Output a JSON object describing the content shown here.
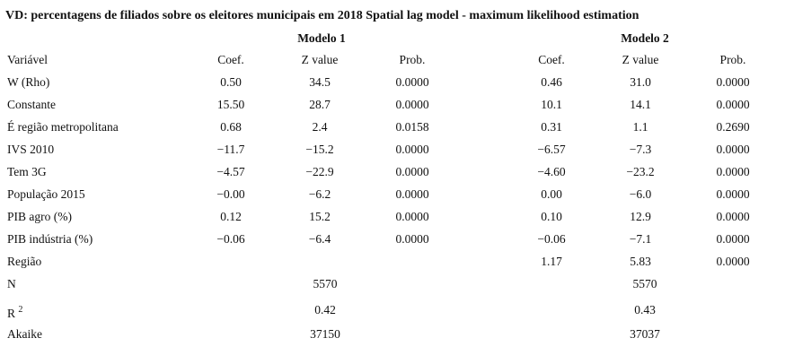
{
  "title": "VD: percentagens de filiados sobre os eleitores municipais em 2018 Spatial lag model - maximum likelihood estimation",
  "models": [
    "Modelo 1",
    "Modelo 2"
  ],
  "columns": [
    "Variável",
    "Coef.",
    "Z value",
    "Prob."
  ],
  "rows": [
    {
      "label": "W (Rho)",
      "model1": [
        "0.50",
        "34.5",
        "0.0000"
      ],
      "model2": [
        "0.46",
        "31.0",
        "0.0000"
      ]
    },
    {
      "label": "Constante",
      "model1": [
        "15.50",
        "28.7",
        "0.0000"
      ],
      "model2": [
        "10.1",
        "14.1",
        "0.0000"
      ]
    },
    {
      "label": "É região metropolitana",
      "model1": [
        "0.68",
        "2.4",
        "0.0158"
      ],
      "model2": [
        "0.31",
        "1.1",
        "0.2690"
      ]
    },
    {
      "label": "IVS 2010",
      "model1": [
        "−11.7",
        "−15.2",
        "0.0000"
      ],
      "model2": [
        "−6.57",
        "−7.3",
        "0.0000"
      ]
    },
    {
      "label": "Tem 3G",
      "model1": [
        "−4.57",
        "−22.9",
        "0.0000"
      ],
      "model2": [
        "−4.60",
        "−23.2",
        "0.0000"
      ]
    },
    {
      "label": "População 2015",
      "model1": [
        "−0.00",
        "−6.2",
        "0.0000"
      ],
      "model2": [
        "0.00",
        "−6.0",
        "0.0000"
      ]
    },
    {
      "label": "PIB agro (%)",
      "model1": [
        "0.12",
        "15.2",
        "0.0000"
      ],
      "model2": [
        "0.10",
        "12.9",
        "0.0000"
      ]
    },
    {
      "label": "PIB indústria (%)",
      "model1": [
        "−0.06",
        "−6.4",
        "0.0000"
      ],
      "model2": [
        "−0.06",
        "−7.1",
        "0.0000"
      ]
    },
    {
      "label": "Região",
      "model2": [
        "1.17",
        "5.83",
        "0.0000"
      ]
    }
  ],
  "stats": [
    {
      "label": "N",
      "model1": "5570",
      "model2": "5570"
    },
    {
      "label": "R",
      "sup": "2",
      "model1": "0.42",
      "model2": "0.43"
    },
    {
      "label": "Akaike",
      "model1": "37150",
      "model2": "37037"
    }
  ]
}
